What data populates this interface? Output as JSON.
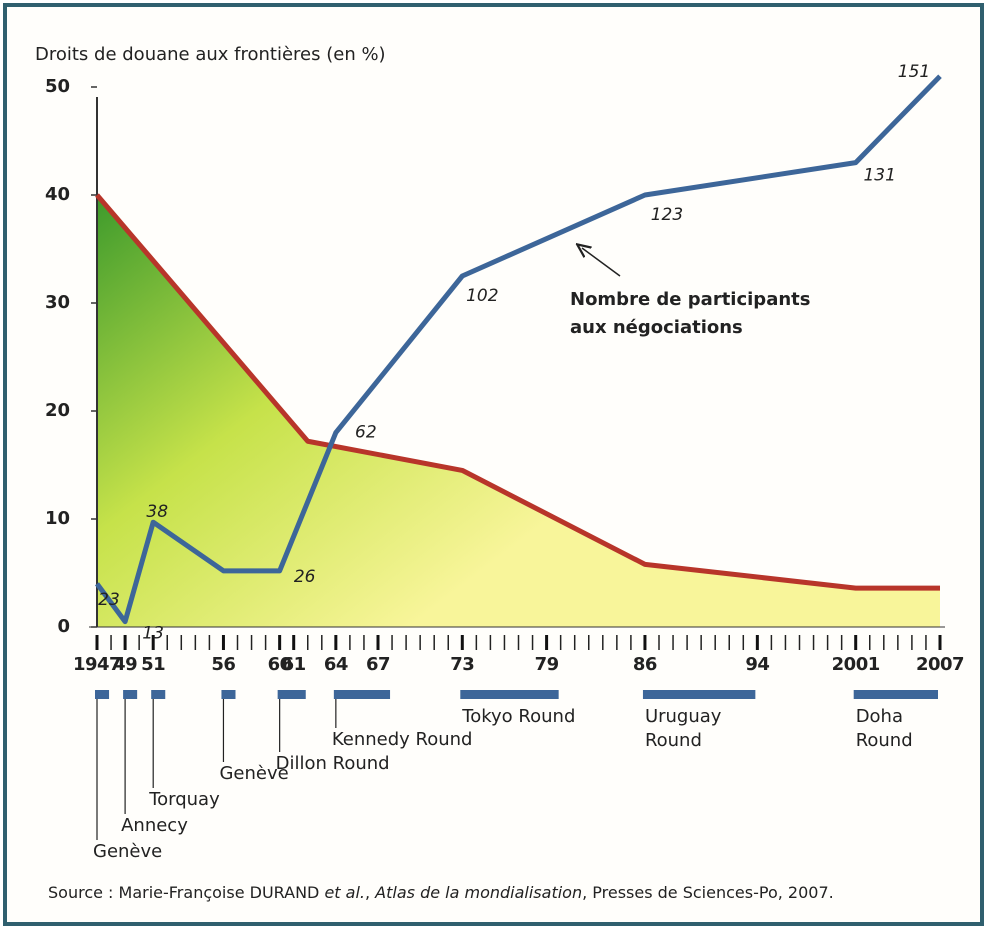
{
  "chart_data": {
    "type": "line",
    "ylabel": "Droits de douane aux frontières (en %)",
    "xlim": [
      1947,
      2007
    ],
    "xticks": [
      {
        "value": 1947,
        "label": "1947"
      },
      {
        "value": 1949,
        "label": "49"
      },
      {
        "value": 1951,
        "label": "51"
      },
      {
        "value": 1956,
        "label": "56"
      },
      {
        "value": 1960,
        "label": "60"
      },
      {
        "value": 1961,
        "label": "61"
      },
      {
        "value": 1964,
        "label": "64"
      },
      {
        "value": 1967,
        "label": "67"
      },
      {
        "value": 1973,
        "label": "73"
      },
      {
        "value": 1979,
        "label": "79"
      },
      {
        "value": 1986,
        "label": "86"
      },
      {
        "value": 1994,
        "label": "94"
      },
      {
        "value": 2001,
        "label": "2001"
      },
      {
        "value": 2007,
        "label": "2007"
      }
    ],
    "minor_tick_step": 1,
    "ylim": [
      0,
      50
    ],
    "yticks": [
      0,
      10,
      20,
      30,
      40,
      50
    ],
    "series": [
      {
        "color": "#b8352a",
        "fill_area": true,
        "x": [
          1947,
          1962,
          1973,
          1986,
          2001,
          2007
        ],
        "values": [
          40,
          17.2,
          14.5,
          5.8,
          3.6,
          3.6
        ]
      },
      {
        "name": "Nombre de participants aux négociations",
        "name_lines": [
          "Nombre de participants",
          "aux négociations"
        ],
        "color": "#3d6699",
        "x": [
          1947,
          1949,
          1951,
          1956,
          1960,
          1964,
          1973,
          1986,
          2001,
          2007
        ],
        "values": [
          4,
          0.5,
          9.7,
          5.2,
          5.2,
          18,
          32.5,
          40,
          43,
          51
        ],
        "point_labels": [
          "23",
          "13",
          "38",
          null,
          "26",
          "62",
          "102",
          "123",
          "131",
          "151"
        ]
      }
    ],
    "rounds": [
      {
        "name": [
          "Genève"
        ],
        "start": 1947,
        "end": 1948
      },
      {
        "name": [
          "Annecy"
        ],
        "start": 1949,
        "end": 1950
      },
      {
        "name": [
          "Torquay"
        ],
        "start": 1951,
        "end": 1952
      },
      {
        "name": [
          "Genève"
        ],
        "start": 1956,
        "end": 1957
      },
      {
        "name": [
          "Dillon Round"
        ],
        "start": 1960,
        "end": 1962
      },
      {
        "name": [
          "Kennedy Round"
        ],
        "start": 1964,
        "end": 1968
      },
      {
        "name": [
          "Tokyo Round"
        ],
        "start": 1973,
        "end": 1980
      },
      {
        "name": [
          "Uruguay",
          "Round"
        ],
        "start": 1986,
        "end": 1994
      },
      {
        "name": [
          "Doha",
          "Round"
        ],
        "start": 2001,
        "end": 2007
      }
    ],
    "source_parts": [
      {
        "text": "Source : Marie-Françoise DURAND ",
        "italic": false
      },
      {
        "text": "et al.",
        "italic": true
      },
      {
        "text": ", ",
        "italic": false
      },
      {
        "text": "Atlas de la mondialisation",
        "italic": true
      },
      {
        "text": ", Presses de Sciences-Po, 2007.",
        "italic": false
      }
    ]
  }
}
